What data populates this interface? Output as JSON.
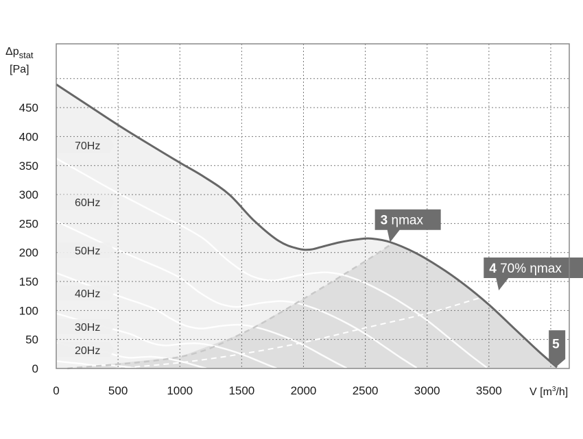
{
  "chart_data": {
    "type": "line",
    "title": "",
    "ylabel_symbol": "Δp",
    "ylabel_sub": "stat",
    "ylabel_unit": "[Pa]",
    "xlabel_prefix": "V [m",
    "xlabel_sup": "3",
    "xlabel_suffix": "/h]",
    "xlim": [
      0,
      4150
    ],
    "ylim": [
      0,
      560
    ],
    "xticks": [
      0,
      500,
      1000,
      1500,
      2000,
      2500,
      3000,
      3500
    ],
    "yticks": [
      0,
      50,
      100,
      150,
      200,
      250,
      300,
      350,
      400,
      450
    ],
    "grid": true,
    "colors": {
      "curve": "#666666",
      "fill_low": "#dedede",
      "fill_high": "#f1f1f1",
      "tag": "#6e6e6e",
      "frequency_lines": "#ffffff",
      "dashed": "#c8c8c8"
    },
    "max_curve": {
      "x": [
        0,
        250,
        500,
        750,
        1000,
        1200,
        1400,
        1600,
        1800,
        1950,
        2050,
        2150,
        2300,
        2450,
        2550,
        2700,
        2900,
        3100,
        3300,
        3500,
        3700,
        3900,
        4050
      ],
      "y": [
        490,
        455,
        420,
        387,
        355,
        330,
        300,
        255,
        220,
        207,
        205,
        210,
        218,
        223,
        224,
        218,
        200,
        175,
        145,
        110,
        70,
        30,
        2
      ]
    },
    "eta_max_line": {
      "x": [
        90,
        1000,
        1500,
        2000,
        2500,
        2700
      ],
      "y": [
        0,
        20,
        60,
        120,
        185,
        213
      ]
    },
    "eta70_line": {
      "x": [
        480,
        1000,
        1500,
        2000,
        2500,
        3000,
        3400,
        3580
      ],
      "y": [
        0,
        10,
        25,
        45,
        70,
        95,
        120,
        130
      ]
    },
    "frequency_labels": [
      {
        "label": "70Hz",
        "y": 385
      },
      {
        "label": "60Hz",
        "y": 287
      },
      {
        "label": "50Hz",
        "y": 204
      },
      {
        "label": "40Hz",
        "y": 130
      },
      {
        "label": "30Hz",
        "y": 72
      },
      {
        "label": "20Hz",
        "y": 32
      }
    ],
    "operating_points": [
      {
        "number": "3",
        "label": "ηmax",
        "x": 2700,
        "y": 213
      },
      {
        "number": "4",
        "label": "70% ηmax",
        "x": 3580,
        "y": 130
      },
      {
        "number": "5",
        "label": "",
        "x": 4040,
        "y": 2
      }
    ]
  }
}
